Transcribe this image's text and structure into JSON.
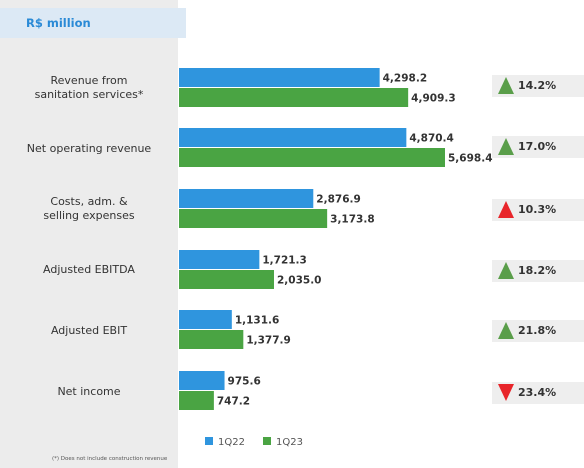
{
  "unit_label": "R$ million",
  "footnote": "(*) Does not include construction revenue",
  "colors": {
    "1Q22": "#2f95de",
    "1Q23": "#4aa443",
    "up": "#5a9e4a",
    "red": "#e8252a"
  },
  "chart_data": {
    "type": "bar",
    "orientation": "horizontal",
    "categories": [
      "Revenue from sanitation services*",
      "Net operating revenue",
      "Costs, adm. & selling expenses",
      "Adjusted EBITDA",
      "Adjusted EBIT",
      "Net income"
    ],
    "series": [
      {
        "name": "1Q22",
        "values": [
          4298.2,
          4870.4,
          2876.9,
          1721.3,
          1131.6,
          975.6
        ],
        "labels": [
          "4,298.2",
          "4,870.4",
          "2,876.9",
          "1,721.3",
          "1,131.6",
          "975.6"
        ]
      },
      {
        "name": "1Q23",
        "values": [
          4909.3,
          5698.4,
          3173.8,
          2035.0,
          1377.9,
          747.2
        ],
        "labels": [
          "4,909.3",
          "5,698.4",
          "3,173.8",
          "2,035.0",
          "1,377.9",
          "747.2"
        ]
      }
    ],
    "changes": [
      {
        "text": "14.2%",
        "direction": "up",
        "color": "green"
      },
      {
        "text": "17.0%",
        "direction": "up",
        "color": "green"
      },
      {
        "text": "10.3%",
        "direction": "up",
        "color": "red"
      },
      {
        "text": "18.2%",
        "direction": "up",
        "color": "green"
      },
      {
        "text": "21.8%",
        "direction": "up",
        "color": "green"
      },
      {
        "text": "23.4%",
        "direction": "down",
        "color": "red"
      }
    ],
    "xlim": [
      0,
      6000
    ],
    "legend": "bottom",
    "grid": false
  }
}
